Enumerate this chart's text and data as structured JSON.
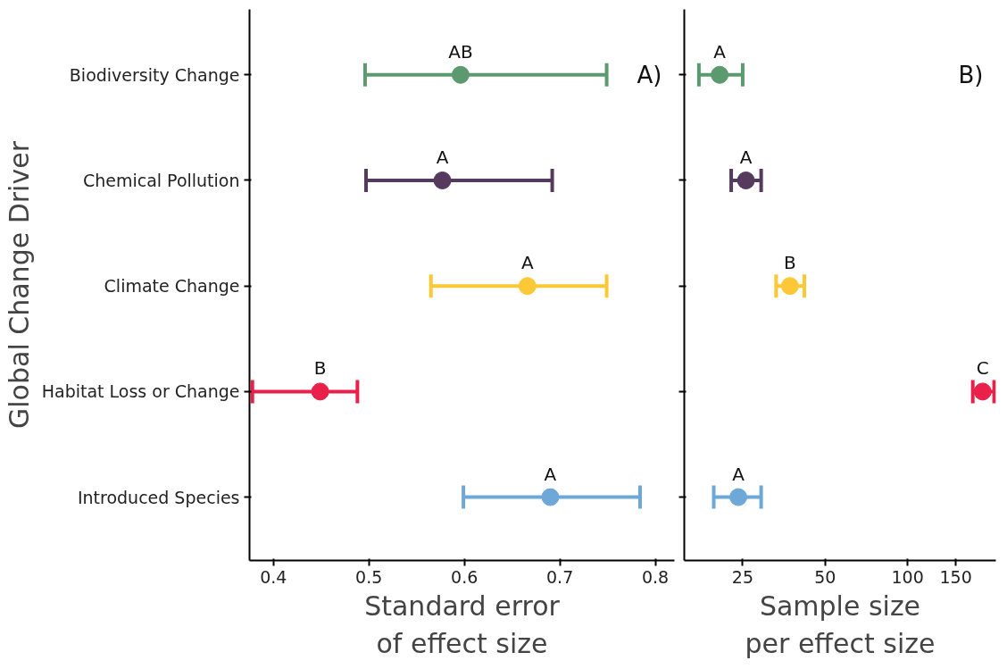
{
  "chart_data": [
    {
      "type": "scatter",
      "orientation": "horizontal",
      "ylabel": "Global Change Driver",
      "xlabel": "Standard error\nof effect size",
      "categories": [
        "Biodiversity Change",
        "Chemical Pollution",
        "Climate Change",
        "Habitat Loss or Change",
        "Introduced Species"
      ],
      "series": [
        {
          "values": [
            0.596,
            0.577,
            0.666,
            0.449,
            0.69
          ],
          "colors": [
            "#5b9a6e",
            "#553a5e",
            "#fdc835",
            "#e8204a",
            "#6ea8d9"
          ],
          "errors": [
            [
              0.496,
              0.749
            ],
            [
              0.497,
              0.692
            ],
            [
              0.565,
              0.749
            ],
            [
              0.378,
              0.488
            ],
            [
              0.599,
              0.784
            ]
          ]
        }
      ],
      "xlim": [
        0.375,
        0.82
      ],
      "xticks": [
        0.4,
        0.5,
        0.6,
        0.7,
        0.8
      ],
      "marker": "circle",
      "grid": false,
      "annotations": [
        {
          "text": "AB",
          "x": 0.596,
          "y": "Biodiversity Change"
        },
        {
          "text": "A",
          "x": 0.577,
          "y": "Chemical Pollution"
        },
        {
          "text": "A",
          "x": 0.666,
          "y": "Climate Change"
        },
        {
          "text": "B",
          "x": 0.449,
          "y": "Habitat Loss or Change"
        },
        {
          "text": "A",
          "x": 0.69,
          "y": "Introduced Species"
        },
        "A)"
      ]
    },
    {
      "type": "scatter",
      "orientation": "horizontal",
      "xlabel": "Sample size\nper effect size",
      "tick_labels": "x",
      "log": "x",
      "categories": [
        "Biodiversity Change",
        "Chemical Pollution",
        "Climate Change",
        "Habitat Loss or Change",
        "Introduced Species"
      ],
      "series": [
        {
          "values": [
            20.6,
            25.7,
            37.2,
            188,
            24.1
          ],
          "colors": [
            "#5b9a6e",
            "#553a5e",
            "#fdc835",
            "#e8204a",
            "#6ea8d9"
          ],
          "errors": [
            [
              17.3,
              25
            ],
            [
              22.7,
              29.2
            ],
            [
              33.1,
              42
            ],
            [
              173,
              207
            ],
            [
              19.6,
              29.2
            ]
          ]
        }
      ],
      "xlim": [
        15.3,
        210
      ],
      "xticks": [
        25,
        50,
        100,
        150
      ],
      "marker": "circle",
      "grid": false,
      "annotations": [
        {
          "text": "A",
          "x": 20.6,
          "y": "Biodiversity Change"
        },
        {
          "text": "A",
          "x": 25.7,
          "y": "Chemical Pollution"
        },
        {
          "text": "B",
          "x": 37.2,
          "y": "Climate Change"
        },
        {
          "text": "C",
          "x": 188,
          "y": "Habitat Loss or Change"
        },
        {
          "text": "A",
          "x": 24.1,
          "y": "Introduced Species"
        },
        "B)"
      ]
    }
  ]
}
